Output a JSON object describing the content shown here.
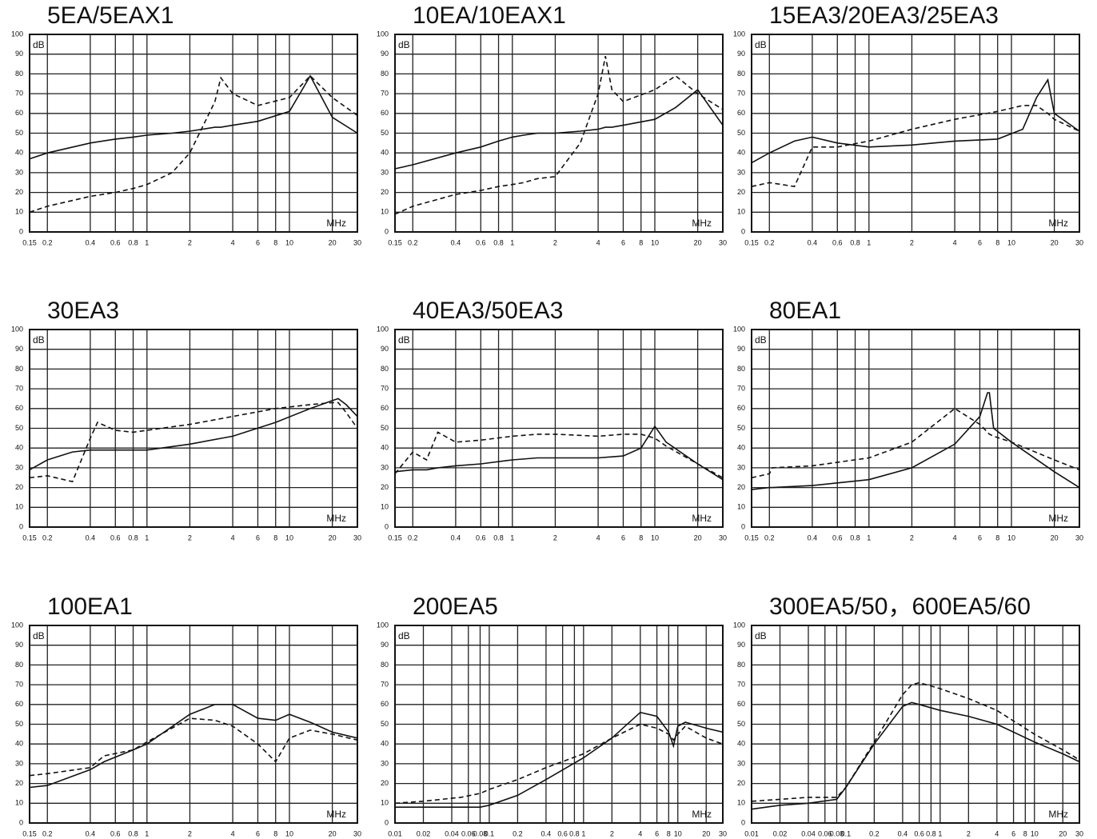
{
  "chart_data": [
    {
      "type": "line",
      "title": "5EA/5EAX1",
      "y_label": "dB",
      "x_label": "MHz",
      "xscale": "log",
      "grid": true,
      "xlim": [
        0.15,
        30
      ],
      "xticks": [
        0.15,
        0.2,
        0.4,
        0.6,
        0.8,
        1,
        2,
        4,
        6,
        8,
        10,
        20,
        30
      ],
      "ylim": [
        0,
        100
      ],
      "yticks": [
        0,
        10,
        20,
        30,
        40,
        50,
        60,
        70,
        80,
        90,
        100
      ],
      "x": [
        0.15,
        0.2,
        0.4,
        0.6,
        0.8,
        1,
        1.5,
        2,
        3,
        3.3,
        4,
        6,
        10,
        14,
        20,
        30
      ],
      "series": [
        {
          "color": "#111111",
          "style": "solid",
          "values": [
            37,
            40,
            45,
            47,
            48,
            49,
            50,
            51,
            53,
            53,
            54,
            56,
            61,
            79,
            58,
            50
          ]
        },
        {
          "color": "#111111",
          "style": "dashed",
          "values": [
            10,
            13,
            18,
            20,
            22,
            24,
            30,
            40,
            66,
            78,
            70,
            64,
            68,
            79,
            68,
            59
          ]
        }
      ]
    },
    {
      "type": "line",
      "title": "10EA/10EAX1",
      "y_label": "dB",
      "x_label": "MHz",
      "xscale": "log",
      "grid": true,
      "xlim": [
        0.15,
        30
      ],
      "xticks": [
        0.15,
        0.2,
        0.4,
        0.6,
        0.8,
        1,
        2,
        4,
        6,
        8,
        10,
        20,
        30
      ],
      "ylim": [
        0,
        100
      ],
      "yticks": [
        0,
        10,
        20,
        30,
        40,
        50,
        60,
        70,
        80,
        90,
        100
      ],
      "x": [
        0.15,
        0.2,
        0.4,
        0.6,
        0.8,
        1,
        1.2,
        1.5,
        2,
        3,
        4,
        4.5,
        5,
        6,
        10,
        14,
        20,
        30
      ],
      "series": [
        {
          "color": "#111111",
          "style": "solid",
          "values": [
            32,
            34,
            40,
            43,
            46,
            48,
            49,
            50,
            50,
            51,
            52,
            53,
            53,
            54,
            57,
            63,
            72,
            54
          ]
        },
        {
          "color": "#111111",
          "style": "dashed",
          "values": [
            9,
            13,
            19,
            21,
            23,
            24,
            25,
            27,
            28,
            45,
            70,
            89,
            72,
            66,
            72,
            79,
            70,
            62
          ]
        }
      ]
    },
    {
      "type": "line",
      "title": "15EA3/20EA3/25EA3",
      "y_label": "dB",
      "x_label": "MHz",
      "xscale": "log",
      "grid": true,
      "xlim": [
        0.15,
        30
      ],
      "xticks": [
        0.15,
        0.2,
        0.4,
        0.6,
        0.8,
        1,
        2,
        4,
        6,
        8,
        10,
        20,
        30
      ],
      "ylim": [
        0,
        100
      ],
      "yticks": [
        0,
        10,
        20,
        30,
        40,
        50,
        60,
        70,
        80,
        90,
        100
      ],
      "x": [
        0.15,
        0.2,
        0.3,
        0.4,
        0.6,
        1,
        2,
        4,
        8,
        12,
        15,
        18,
        20,
        30
      ],
      "series": [
        {
          "color": "#111111",
          "style": "solid",
          "values": [
            35,
            40,
            46,
            48,
            45,
            43,
            44,
            46,
            47,
            52,
            68,
            77,
            60,
            51
          ]
        },
        {
          "color": "#111111",
          "style": "dashed",
          "values": [
            23,
            25,
            23,
            43,
            43,
            46,
            52,
            57,
            61,
            64,
            64,
            60,
            57,
            51
          ]
        }
      ]
    },
    {
      "type": "line",
      "title": "30EA3",
      "y_label": "dB",
      "x_label": "MHz",
      "xscale": "log",
      "grid": true,
      "xlim": [
        0.15,
        30
      ],
      "xticks": [
        0.15,
        0.2,
        0.4,
        0.6,
        0.8,
        1,
        2,
        4,
        6,
        8,
        10,
        20,
        30
      ],
      "ylim": [
        0,
        100
      ],
      "yticks": [
        0,
        10,
        20,
        30,
        40,
        50,
        60,
        70,
        80,
        90,
        100
      ],
      "x": [
        0.15,
        0.2,
        0.3,
        0.4,
        0.45,
        0.6,
        0.8,
        1,
        2,
        4,
        8,
        14,
        20,
        22,
        25,
        30
      ],
      "series": [
        {
          "color": "#111111",
          "style": "solid",
          "values": [
            29,
            34,
            38,
            39,
            39,
            39,
            39,
            39,
            42,
            46,
            53,
            60,
            64,
            65,
            62,
            56
          ]
        },
        {
          "color": "#111111",
          "style": "dashed",
          "values": [
            25,
            26,
            23,
            45,
            53,
            49,
            48,
            49,
            52,
            56,
            60,
            62,
            63,
            63,
            58,
            50
          ]
        }
      ]
    },
    {
      "type": "line",
      "title": "40EA3/50EA3",
      "y_label": "dB",
      "x_label": "MHz",
      "xscale": "log",
      "grid": true,
      "xlim": [
        0.15,
        30
      ],
      "xticks": [
        0.15,
        0.2,
        0.4,
        0.6,
        0.8,
        1,
        2,
        4,
        6,
        8,
        10,
        20,
        30
      ],
      "ylim": [
        0,
        100
      ],
      "yticks": [
        0,
        10,
        20,
        30,
        40,
        50,
        60,
        70,
        80,
        90,
        100
      ],
      "x": [
        0.15,
        0.2,
        0.25,
        0.3,
        0.4,
        0.6,
        1,
        1.5,
        2,
        4,
        6,
        8,
        10,
        12,
        20,
        30
      ],
      "series": [
        {
          "color": "#111111",
          "style": "solid",
          "values": [
            28,
            29,
            29,
            30,
            31,
            32,
            34,
            35,
            35,
            35,
            36,
            40,
            51,
            43,
            32,
            24
          ]
        },
        {
          "color": "#111111",
          "style": "dashed",
          "values": [
            27,
            38,
            34,
            48,
            43,
            44,
            46,
            47,
            47,
            46,
            47,
            47,
            45,
            41,
            32,
            25
          ]
        }
      ]
    },
    {
      "type": "line",
      "title": "80EA1",
      "y_label": "dB",
      "x_label": "MHz",
      "xscale": "log",
      "grid": true,
      "xlim": [
        0.15,
        30
      ],
      "xticks": [
        0.15,
        0.2,
        0.4,
        0.6,
        0.8,
        1,
        2,
        4,
        6,
        8,
        10,
        20,
        30
      ],
      "ylim": [
        0,
        100
      ],
      "yticks": [
        0,
        10,
        20,
        30,
        40,
        50,
        60,
        70,
        80,
        90,
        100
      ],
      "x": [
        0.15,
        0.2,
        0.21,
        0.4,
        1,
        2,
        4,
        6,
        6.8,
        7,
        7.5,
        10,
        20,
        30
      ],
      "series": [
        {
          "color": "#111111",
          "style": "solid",
          "values": [
            19,
            20,
            20,
            21,
            24,
            30,
            42,
            56,
            68,
            68,
            50,
            43,
            28,
            20
          ]
        },
        {
          "color": "#111111",
          "style": "dashed",
          "values": [
            25,
            27,
            30,
            31,
            35,
            43,
            60,
            52,
            48,
            47,
            46,
            43,
            34,
            29
          ]
        }
      ]
    },
    {
      "type": "line",
      "title": "100EA1",
      "y_label": "dB",
      "x_label": "MHz",
      "xscale": "log",
      "grid": true,
      "xlim": [
        0.15,
        30
      ],
      "xticks": [
        0.15,
        0.2,
        0.4,
        0.6,
        0.8,
        1,
        2,
        4,
        6,
        8,
        10,
        20,
        30
      ],
      "ylim": [
        0,
        100
      ],
      "yticks": [
        0,
        10,
        20,
        30,
        40,
        50,
        60,
        70,
        80,
        90,
        100
      ],
      "x": [
        0.15,
        0.2,
        0.4,
        0.5,
        0.8,
        1,
        2,
        3,
        4,
        6,
        8,
        10,
        14,
        20,
        30
      ],
      "series": [
        {
          "color": "#111111",
          "style": "solid",
          "values": [
            18,
            19,
            27,
            31,
            37,
            40,
            55,
            60,
            60,
            53,
            52,
            55,
            51,
            46,
            43
          ]
        },
        {
          "color": "#111111",
          "style": "dashed",
          "values": [
            24,
            25,
            28,
            34,
            37,
            41,
            53,
            52,
            49,
            40,
            31,
            43,
            47,
            45,
            42
          ]
        }
      ]
    },
    {
      "type": "line",
      "title": "200EA5",
      "y_label": "dB",
      "x_label": "MHz",
      "xscale": "log",
      "grid": true,
      "xlim": [
        0.01,
        30
      ],
      "xticks": [
        0.01,
        0.02,
        0.04,
        0.06,
        0.08,
        0.1,
        0.2,
        0.4,
        0.6,
        0.8,
        1,
        2,
        4,
        6,
        8,
        10,
        20,
        30
      ],
      "ylim": [
        0,
        100
      ],
      "yticks": [
        0,
        10,
        20,
        30,
        40,
        50,
        60,
        70,
        80,
        90,
        100
      ],
      "x": [
        0.01,
        0.02,
        0.05,
        0.08,
        0.1,
        0.2,
        0.4,
        1,
        2,
        4,
        6,
        8,
        9,
        10,
        12,
        20,
        30
      ],
      "series": [
        {
          "color": "#111111",
          "style": "solid",
          "values": [
            8,
            8,
            8,
            8,
            9,
            14,
            22,
            33,
            43,
            56,
            54,
            46,
            39,
            49,
            51,
            48,
            46
          ]
        },
        {
          "color": "#111111",
          "style": "dashed",
          "values": [
            10,
            11,
            13,
            15,
            17,
            22,
            28,
            35,
            43,
            50,
            48,
            45,
            42,
            45,
            49,
            43,
            40
          ]
        }
      ]
    },
    {
      "type": "line",
      "title": "300EA5/50，600EA5/60",
      "y_label": "dB",
      "x_label": "MHz",
      "xscale": "log",
      "grid": true,
      "xlim": [
        0.01,
        30
      ],
      "xticks": [
        0.01,
        0.02,
        0.04,
        0.06,
        0.08,
        0.1,
        0.2,
        0.4,
        0.6,
        0.8,
        1,
        2,
        4,
        6,
        8,
        10,
        20,
        30
      ],
      "ylim": [
        0,
        100
      ],
      "yticks": [
        0,
        10,
        20,
        30,
        40,
        50,
        60,
        70,
        80,
        90,
        100
      ],
      "x": [
        0.01,
        0.02,
        0.04,
        0.08,
        0.1,
        0.2,
        0.4,
        0.5,
        0.6,
        1,
        2,
        4,
        10,
        20,
        30
      ],
      "series": [
        {
          "color": "#111111",
          "style": "solid",
          "values": [
            7,
            9,
            10,
            12,
            18,
            40,
            59,
            61,
            60,
            57,
            54,
            50,
            41,
            35,
            31
          ]
        },
        {
          "color": "#111111",
          "style": "dashed",
          "values": [
            11,
            12,
            13,
            13,
            18,
            41,
            65,
            70,
            71,
            68,
            63,
            57,
            45,
            37,
            32
          ]
        }
      ]
    }
  ]
}
